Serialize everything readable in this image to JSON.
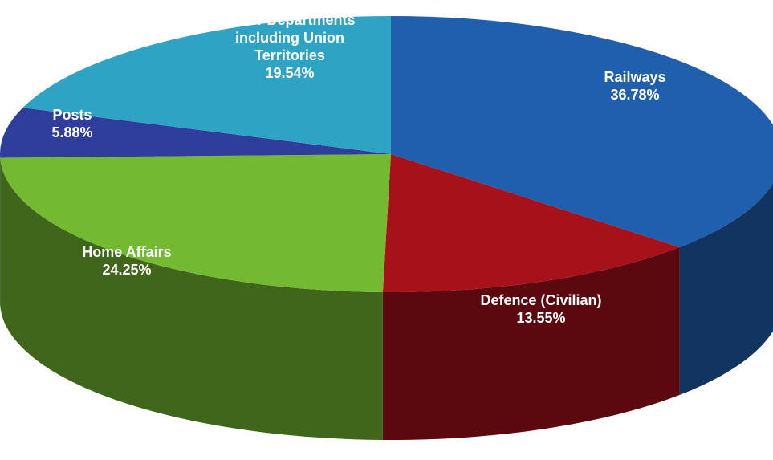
{
  "chart_data": {
    "type": "pie",
    "title": "",
    "series": [
      {
        "values": [
          {
            "label": "Railways",
            "value": 36.78,
            "color": "#1f5fae"
          },
          {
            "label": "Defence (Civilian)",
            "value": 13.55,
            "color": "#a6111a"
          },
          {
            "label": "Home Affairs",
            "value": 24.25,
            "color": "#74b932"
          },
          {
            "label": "Posts",
            "value": 5.88,
            "color": "#2f3d9c"
          },
          {
            "label": "Other Departments including Union Territories",
            "value": 19.54,
            "color": "#2ea3c4"
          }
        ]
      }
    ],
    "labels": [
      {
        "lines": [
          "Railways",
          "36.78%"
        ]
      },
      {
        "lines": [
          "Defence (Civilian)",
          "13.55%"
        ]
      },
      {
        "lines": [
          "Home Affairs",
          "24.25%"
        ]
      },
      {
        "lines": [
          "Posts",
          "5.88%"
        ]
      },
      {
        "lines": [
          "Other Departments",
          "including Union",
          "Territories",
          "19.54%"
        ]
      }
    ],
    "legend": "none",
    "style": "3d"
  }
}
